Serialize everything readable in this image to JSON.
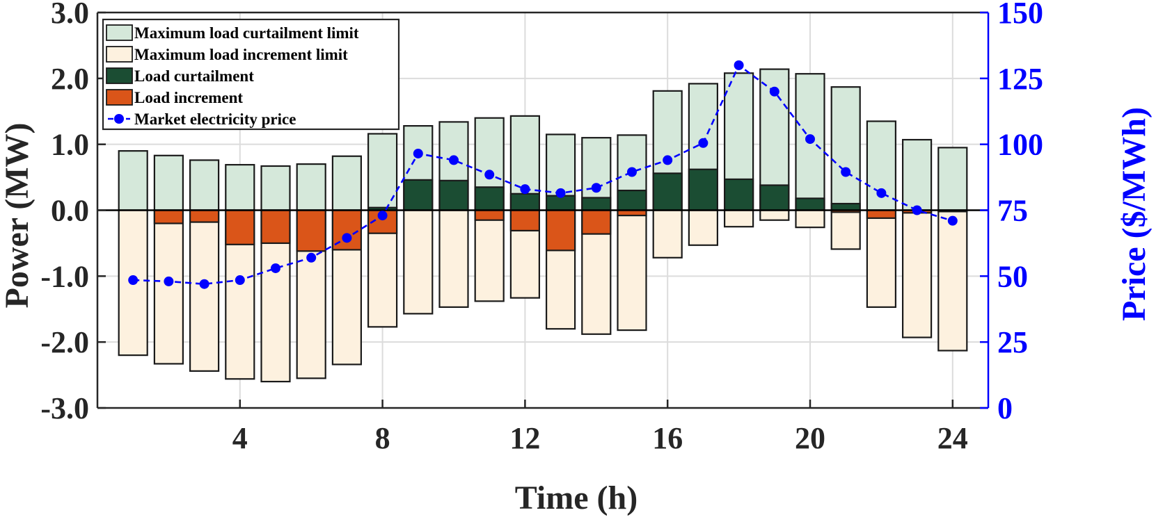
{
  "chart_data": {
    "type": "bar",
    "title": "",
    "xlabel": "Time (h)",
    "ylabel": "Power (MW)",
    "y2label": "Price ($/MWh)",
    "ylim": [
      -3.0,
      3.0
    ],
    "y2lim": [
      0,
      150
    ],
    "xlim": [
      0,
      25
    ],
    "xticks": [
      4,
      8,
      12,
      16,
      20,
      24
    ],
    "yticks": [
      "-3.0",
      "-2.0",
      "-1.0",
      "0.0",
      "1.0",
      "2.0",
      "3.0"
    ],
    "y2ticks": [
      "0",
      "25",
      "50",
      "75",
      "100",
      "125",
      "150"
    ],
    "grid": true,
    "legend_position": "top-left",
    "hours": [
      1,
      2,
      3,
      4,
      5,
      6,
      7,
      8,
      9,
      10,
      11,
      12,
      13,
      14,
      15,
      16,
      17,
      18,
      19,
      20,
      21,
      22,
      23,
      24
    ],
    "series": [
      {
        "name": "Maximum load curtailment limit",
        "axis": "left",
        "color": "#d5e8da",
        "values": [
          0.9,
          0.83,
          0.76,
          0.69,
          0.67,
          0.7,
          0.82,
          1.16,
          1.28,
          1.34,
          1.4,
          1.43,
          1.15,
          1.1,
          1.14,
          1.81,
          1.92,
          2.08,
          2.14,
          2.07,
          1.87,
          1.35,
          1.07,
          0.95
        ]
      },
      {
        "name": "Maximum load increment limit",
        "axis": "left",
        "color": "#fdf1df",
        "values": [
          -2.2,
          -2.33,
          -2.44,
          -2.56,
          -2.6,
          -2.55,
          -2.34,
          -1.77,
          -1.57,
          -1.47,
          -1.38,
          -1.33,
          -1.8,
          -1.88,
          -1.82,
          -0.72,
          -0.53,
          -0.25,
          -0.15,
          -0.26,
          -0.59,
          -1.47,
          -1.93,
          -2.13
        ]
      },
      {
        "name": "Load curtailment",
        "axis": "left",
        "color": "#1b4d33",
        "values": [
          0,
          0,
          0,
          0,
          0,
          0,
          0,
          0.04,
          0.46,
          0.45,
          0.35,
          0.25,
          0.22,
          0.19,
          0.3,
          0.56,
          0.62,
          0.47,
          0.38,
          0.18,
          0.1,
          0,
          0,
          0
        ]
      },
      {
        "name": "Load increment",
        "axis": "left",
        "color": "#da5519",
        "values": [
          0,
          -0.2,
          -0.18,
          -0.52,
          -0.5,
          -0.62,
          -0.6,
          -0.35,
          0,
          0,
          -0.15,
          -0.31,
          -0.61,
          -0.36,
          -0.08,
          0,
          0,
          0,
          0,
          0,
          -0.03,
          -0.12,
          -0.04,
          -0.02
        ]
      },
      {
        "name": "Market electricity price",
        "axis": "right",
        "color": "#0000ff",
        "values": [
          48.5,
          48,
          47,
          48.5,
          53,
          57,
          64.5,
          73,
          96.5,
          94,
          88.5,
          83,
          81.5,
          83.5,
          89.5,
          94,
          100.5,
          130,
          120,
          102,
          89.5,
          81.5,
          75,
          71
        ]
      }
    ]
  }
}
